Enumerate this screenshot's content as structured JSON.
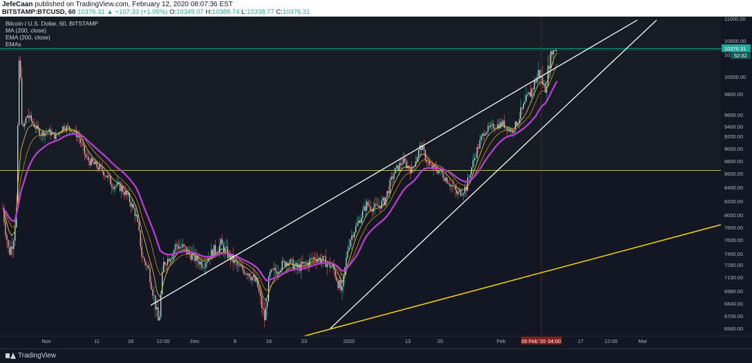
{
  "header": {
    "author": "JefeCaan",
    "published": " published on TradingView.com, February 12, 2020 08:07:36 EST",
    "symbol": "BITSTAMP:BTCUSD, 60",
    "last": "10376.31",
    "change": "▲ +107.33 (+1.05%)",
    "o_label": "O:",
    "o": "10349.07",
    "h_label": "H:",
    "h": "10388.74",
    "l_label": "L:",
    "l": "10338.77",
    "c_label": "C:",
    "c": "10376.31"
  },
  "legend": {
    "title": "Bitcoin / U.S. Dollar, 60, BITSTAMP",
    "ma": "MA (200, close)",
    "ema": "EMA (200, close)",
    "emas": "EMAs"
  },
  "footer": {
    "brand": "TradingView"
  },
  "colors": {
    "background": "#131722",
    "candle_up": "#26a69a",
    "candle_down": "#ef5350",
    "ema_slow": "#b33fcc",
    "ema_fast": "#e6b422",
    "trend_line": "#ffffff",
    "support_line": "#ffd600",
    "horizontal_top": "#26a69a",
    "horizontal_mid": "#c8c040",
    "crosshair": "#d32f2f"
  },
  "chart_data": {
    "type": "line",
    "title": "Bitcoin / U.S. Dollar, 60, BITSTAMP",
    "y_ticks": [
      "11000.00",
      "10600.00",
      "10200.00",
      "10000.00",
      "9800.00",
      "9600.00",
      "9400.00",
      "9200.00",
      "9000.00",
      "8800.00",
      "8600.00",
      "8400.00",
      "8200.00",
      "8000.00",
      "7800.00",
      "7600.00",
      "7450.00",
      "7290.00",
      "7130.00",
      "6980.00",
      "6840.00",
      "6700.00",
      "6560.00"
    ],
    "x_ticks": [
      "Nov",
      "11",
      "18",
      "12:00",
      "Dec",
      "9",
      "16",
      "23",
      "2020",
      "13",
      "20",
      "Feb",
      "09 Feb '20",
      "04:00",
      "17",
      "12:00",
      "Mar"
    ],
    "last_price_label": "10376.31",
    "countdown_label": "52:32",
    "price_series": [
      {
        "t": 0,
        "p": 8100
      },
      {
        "t": 2,
        "p": 7700
      },
      {
        "t": 4,
        "p": 7450
      },
      {
        "t": 7,
        "p": 7600
      },
      {
        "t": 9,
        "p": 8050
      },
      {
        "t": 10,
        "p": 9500
      },
      {
        "t": 11,
        "p": 10300
      },
      {
        "t": 13,
        "p": 9300
      },
      {
        "t": 16,
        "p": 9600
      },
      {
        "t": 20,
        "p": 9450
      },
      {
        "t": 25,
        "p": 9250
      },
      {
        "t": 30,
        "p": 9300
      },
      {
        "t": 35,
        "p": 9200
      },
      {
        "t": 40,
        "p": 9400
      },
      {
        "t": 45,
        "p": 9350
      },
      {
        "t": 50,
        "p": 9200
      },
      {
        "t": 55,
        "p": 8850
      },
      {
        "t": 60,
        "p": 8750
      },
      {
        "t": 66,
        "p": 8650
      },
      {
        "t": 72,
        "p": 8450
      },
      {
        "t": 78,
        "p": 8400
      },
      {
        "t": 83,
        "p": 8250
      },
      {
        "t": 88,
        "p": 8000
      },
      {
        "t": 92,
        "p": 7400
      },
      {
        "t": 96,
        "p": 7250
      },
      {
        "t": 100,
        "p": 6900
      },
      {
        "t": 103,
        "p": 6600
      },
      {
        "t": 106,
        "p": 7300
      },
      {
        "t": 110,
        "p": 7400
      },
      {
        "t": 115,
        "p": 7550
      },
      {
        "t": 120,
        "p": 7500
      },
      {
        "t": 126,
        "p": 7400
      },
      {
        "t": 132,
        "p": 7300
      },
      {
        "t": 138,
        "p": 7450
      },
      {
        "t": 144,
        "p": 7550
      },
      {
        "t": 150,
        "p": 7400
      },
      {
        "t": 156,
        "p": 7250
      },
      {
        "t": 162,
        "p": 7200
      },
      {
        "t": 168,
        "p": 7050
      },
      {
        "t": 173,
        "p": 6650
      },
      {
        "t": 176,
        "p": 7150
      },
      {
        "t": 182,
        "p": 7250
      },
      {
        "t": 188,
        "p": 7350
      },
      {
        "t": 194,
        "p": 7250
      },
      {
        "t": 200,
        "p": 7300
      },
      {
        "t": 206,
        "p": 7400
      },
      {
        "t": 212,
        "p": 7350
      },
      {
        "t": 218,
        "p": 7250
      },
      {
        "t": 224,
        "p": 6950
      },
      {
        "t": 228,
        "p": 7550
      },
      {
        "t": 234,
        "p": 7850
      },
      {
        "t": 240,
        "p": 8150
      },
      {
        "t": 246,
        "p": 8100
      },
      {
        "t": 252,
        "p": 8200
      },
      {
        "t": 258,
        "p": 8600
      },
      {
        "t": 264,
        "p": 8800
      },
      {
        "t": 270,
        "p": 8650
      },
      {
        "t": 276,
        "p": 9050
      },
      {
        "t": 282,
        "p": 8700
      },
      {
        "t": 288,
        "p": 8650
      },
      {
        "t": 294,
        "p": 8500
      },
      {
        "t": 300,
        "p": 8300
      },
      {
        "t": 306,
        "p": 8400
      },
      {
        "t": 312,
        "p": 8900
      },
      {
        "t": 318,
        "p": 9300
      },
      {
        "t": 324,
        "p": 9400
      },
      {
        "t": 330,
        "p": 9450
      },
      {
        "t": 336,
        "p": 9300
      },
      {
        "t": 342,
        "p": 9600
      },
      {
        "t": 348,
        "p": 9800
      },
      {
        "t": 354,
        "p": 10050
      },
      {
        "t": 358,
        "p": 9850
      },
      {
        "t": 362,
        "p": 10250
      },
      {
        "t": 366,
        "p": 10376
      }
    ]
  }
}
